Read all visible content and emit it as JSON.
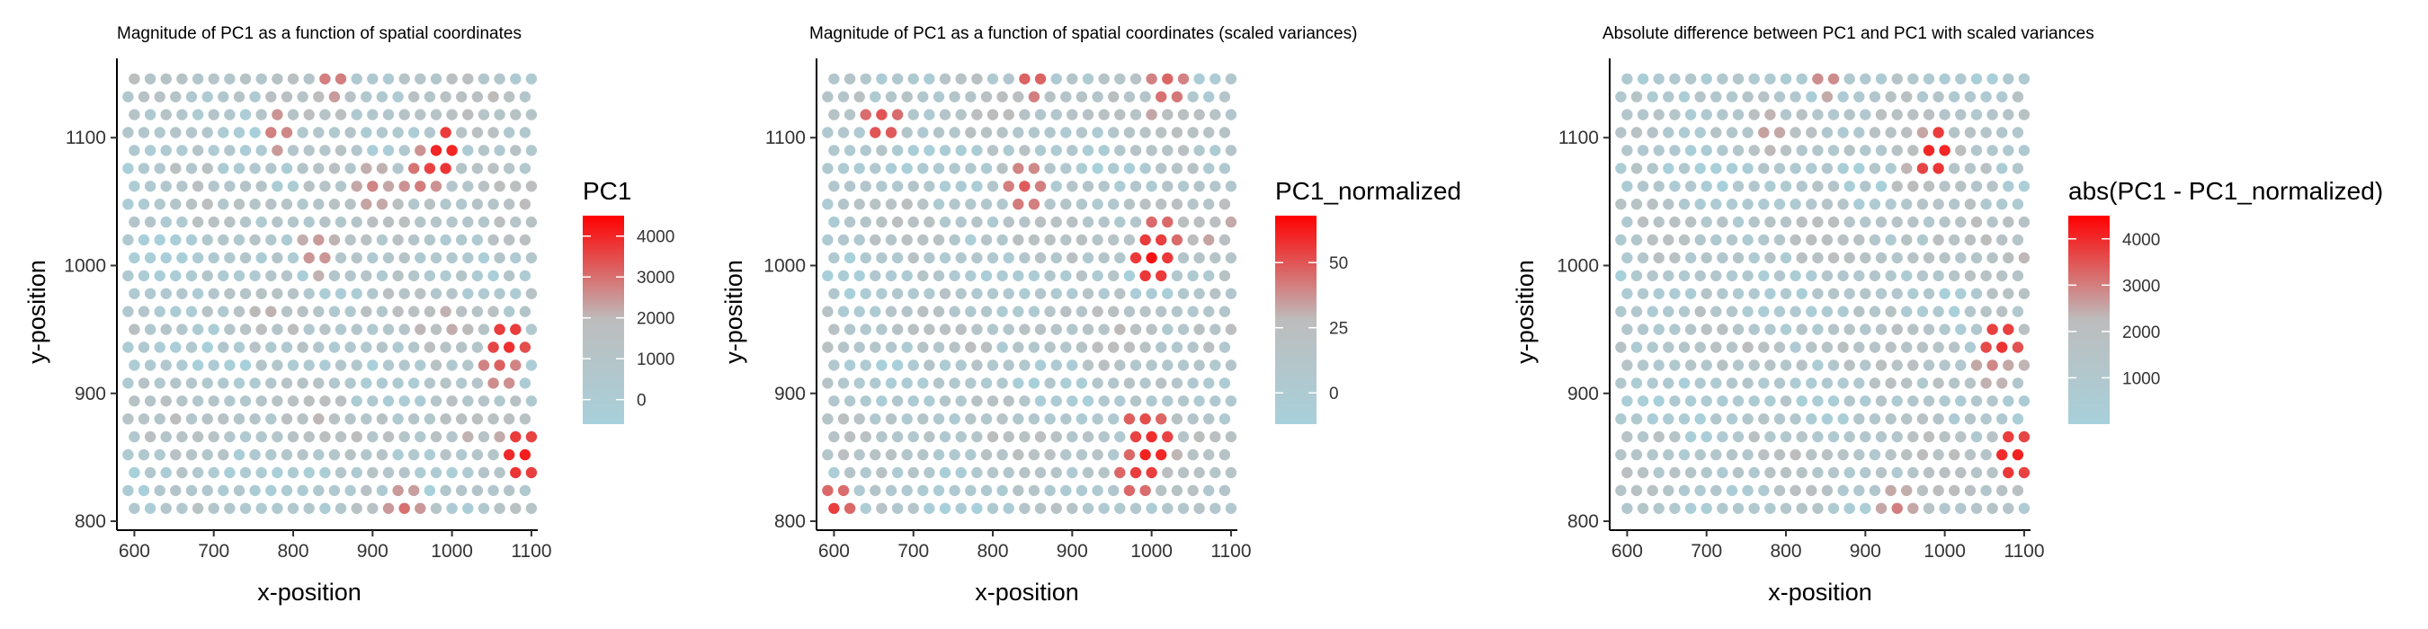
{
  "chart_data": [
    {
      "type": "scatter",
      "title": "Magnitude of PC1 as a function of spatial coordinates",
      "xlabel": "x-position",
      "ylabel": "y-position",
      "xlim": [
        578,
        1108
      ],
      "ylim": [
        793,
        1162
      ],
      "xticks": [
        600,
        700,
        800,
        900,
        1000,
        1100
      ],
      "yticks": [
        800,
        900,
        1000,
        1100
      ],
      "grid": false,
      "legend": {
        "title": "PC1",
        "range": [
          -600,
          4500
        ],
        "ticks": [
          0,
          1000,
          2000,
          3000,
          4000
        ],
        "colors": [
          "#A8D0DB",
          "#BDBDBD",
          "#FF0000"
        ],
        "placement": "right"
      },
      "point_colors": {
        "low": "#A8D0DB",
        "mid": "#BDBDBD",
        "high": "#FF0000"
      },
      "grid_points": {
        "rows": 25,
        "cols": 26,
        "x_start": 600,
        "x_step": 20,
        "y_start": 810,
        "y_step": 14,
        "odd_row_offset": -8
      },
      "hotspots": [
        {
          "x": 990,
          "y": 1089,
          "v": 4300
        },
        {
          "x": 1070,
          "y": 942,
          "v": 4100
        },
        {
          "x": 1085,
          "y": 851,
          "v": 4300
        },
        {
          "x": 960,
          "y": 1072,
          "v": 3200
        },
        {
          "x": 850,
          "y": 1150,
          "v": 3100
        },
        {
          "x": 780,
          "y": 1105,
          "v": 3000
        },
        {
          "x": 900,
          "y": 1060,
          "v": 2800
        },
        {
          "x": 940,
          "y": 810,
          "v": 3000
        },
        {
          "x": 1060,
          "y": 925,
          "v": 3300
        },
        {
          "x": 830,
          "y": 1010,
          "v": 2800
        }
      ]
    },
    {
      "type": "scatter",
      "title": "Magnitude of PC1 as a function of spatial coordinates (scaled variances)",
      "xlabel": "x-position",
      "ylabel": "y-position",
      "xlim": [
        578,
        1108
      ],
      "ylim": [
        793,
        1162
      ],
      "xticks": [
        600,
        700,
        800,
        900,
        1000,
        1100
      ],
      "yticks": [
        800,
        900,
        1000,
        1100
      ],
      "grid": false,
      "legend": {
        "title": "PC1_normalized",
        "range": [
          -12,
          68
        ],
        "ticks": [
          0,
          25,
          50
        ],
        "colors": [
          "#A8D0DB",
          "#BDBDBD",
          "#FF0000"
        ],
        "placement": "right"
      },
      "point_colors": {
        "low": "#A8D0DB",
        "mid": "#BDBDBD",
        "high": "#FF0000"
      },
      "grid_points": {
        "rows": 25,
        "cols": 26,
        "x_start": 600,
        "x_step": 20,
        "y_start": 810,
        "y_step": 14,
        "odd_row_offset": -8
      },
      "hotspots": [
        {
          "x": 1000,
          "y": 1005,
          "v": 65
        },
        {
          "x": 1000,
          "y": 855,
          "v": 65
        },
        {
          "x": 1010,
          "y": 1020,
          "v": 55
        },
        {
          "x": 990,
          "y": 870,
          "v": 58
        },
        {
          "x": 660,
          "y": 1110,
          "v": 55
        },
        {
          "x": 850,
          "y": 1150,
          "v": 52
        },
        {
          "x": 1020,
          "y": 1140,
          "v": 50
        },
        {
          "x": 600,
          "y": 810,
          "v": 55
        },
        {
          "x": 840,
          "y": 1060,
          "v": 50
        },
        {
          "x": 980,
          "y": 838,
          "v": 55
        }
      ]
    },
    {
      "type": "scatter",
      "title": "Absolute difference between PC1 and PC1 with scaled variances",
      "xlabel": "x-position",
      "ylabel": "y-position",
      "xlim": [
        578,
        1108
      ],
      "ylim": [
        793,
        1162
      ],
      "xticks": [
        600,
        700,
        800,
        900,
        1000,
        1100
      ],
      "yticks": [
        800,
        900,
        1000,
        1100
      ],
      "grid": false,
      "legend": {
        "title": "abs(PC1 - PC1_normalized)",
        "range": [
          0,
          4500
        ],
        "ticks": [
          1000,
          2000,
          3000,
          4000
        ],
        "colors": [
          "#A8D0DB",
          "#BDBDBD",
          "#FF0000"
        ],
        "placement": "right"
      },
      "point_colors": {
        "low": "#A8D0DB",
        "mid": "#BDBDBD",
        "high": "#FF0000"
      },
      "grid_points": {
        "rows": 25,
        "cols": 26,
        "x_start": 600,
        "x_step": 20,
        "y_start": 810,
        "y_step": 14,
        "odd_row_offset": -8
      },
      "hotspots": [
        {
          "x": 990,
          "y": 1089,
          "v": 4300
        },
        {
          "x": 1070,
          "y": 942,
          "v": 4100
        },
        {
          "x": 1085,
          "y": 851,
          "v": 4300
        },
        {
          "x": 850,
          "y": 1150,
          "v": 3100
        },
        {
          "x": 780,
          "y": 1105,
          "v": 2800
        },
        {
          "x": 940,
          "y": 810,
          "v": 3000
        },
        {
          "x": 960,
          "y": 1072,
          "v": 2600
        },
        {
          "x": 1060,
          "y": 925,
          "v": 3000
        }
      ]
    }
  ]
}
